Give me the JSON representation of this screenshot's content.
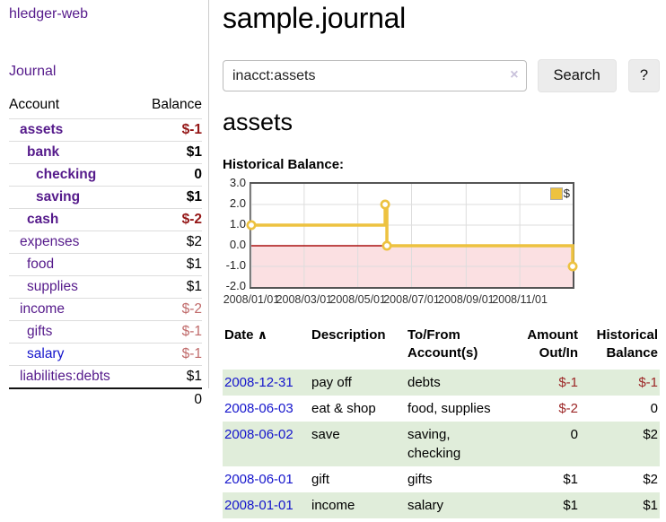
{
  "colors": {
    "link_purple": "#551a8b",
    "link_blue": "#1515cc",
    "negative_strong": "#941616",
    "negative_soft": "#c06a6a",
    "table_negative": "#9c2626",
    "row_stripe_green": "#e0edda",
    "chart_line_gold": "#edc240"
  },
  "sidebar": {
    "app_title": "hledger-web",
    "nav_journal": "Journal",
    "accounts": {
      "header_account": "Account",
      "header_balance": "Balance",
      "rows": [
        {
          "label": "assets",
          "balance": "$-1",
          "level": 1,
          "bold": true,
          "link": "purple",
          "balance_style": "neg"
        },
        {
          "label": "bank",
          "balance": "$1",
          "level": 2,
          "bold": true,
          "link": "purple",
          "balance_style": "normal"
        },
        {
          "label": "checking",
          "balance": "0",
          "level": 3,
          "bold": true,
          "link": "purple",
          "balance_style": "normal"
        },
        {
          "label": "saving",
          "balance": "$1",
          "level": 3,
          "bold": true,
          "link": "purple",
          "balance_style": "normal"
        },
        {
          "label": "cash",
          "balance": "$-2",
          "level": 2,
          "bold": true,
          "link": "purple",
          "balance_style": "neg"
        },
        {
          "label": "expenses",
          "balance": "$2",
          "level": 1,
          "bold": false,
          "link": "purple",
          "balance_style": "normal"
        },
        {
          "label": "food",
          "balance": "$1",
          "level": 2,
          "bold": false,
          "link": "purple",
          "balance_style": "normal"
        },
        {
          "label": "supplies",
          "balance": "$1",
          "level": 2,
          "bold": false,
          "link": "purple",
          "balance_style": "normal"
        },
        {
          "label": "income",
          "balance": "$-2",
          "level": 1,
          "bold": false,
          "link": "purple",
          "balance_style": "neg-soft"
        },
        {
          "label": "gifts",
          "balance": "$-1",
          "level": 2,
          "bold": false,
          "link": "purple",
          "balance_style": "neg-soft"
        },
        {
          "label": "salary",
          "balance": "$-1",
          "level": 2,
          "bold": false,
          "link": "blue",
          "balance_style": "neg-soft"
        },
        {
          "label": "liabilities:debts",
          "balance": "$1",
          "level": 1,
          "bold": false,
          "link": "purple",
          "balance_style": "normal"
        }
      ],
      "total": "0"
    }
  },
  "main": {
    "title": "sample.journal",
    "search": {
      "value": "inacct:assets",
      "clear_icon": "×",
      "search_button": "Search",
      "help_button": "?"
    },
    "account_heading": "assets",
    "chart_title": "Historical Balance:",
    "register": {
      "headers": {
        "date": "Date",
        "sort_icon": "∧",
        "description": "Description",
        "accounts_line1": "To/From",
        "accounts_line2": "Account(s)",
        "amount_line1": "Amount",
        "amount_line2": "Out/In",
        "balance_line1": "Historical",
        "balance_line2": "Balance"
      },
      "rows": [
        {
          "date": "2008-12-31",
          "description": "pay off",
          "accounts": "debts",
          "amount": "$-1",
          "amount_neg": true,
          "balance": "$-1",
          "balance_neg": true,
          "stripe": true
        },
        {
          "date": "2008-06-03",
          "description": "eat & shop",
          "accounts": "food, supplies",
          "amount": "$-2",
          "amount_neg": true,
          "balance": "0",
          "balance_neg": false,
          "stripe": false
        },
        {
          "date": "2008-06-02",
          "description": "save",
          "accounts": "saving, checking",
          "amount": "0",
          "amount_neg": false,
          "balance": "$2",
          "balance_neg": false,
          "stripe": true
        },
        {
          "date": "2008-06-01",
          "description": "gift",
          "accounts": "gifts",
          "amount": "$1",
          "amount_neg": false,
          "balance": "$2",
          "balance_neg": false,
          "stripe": false
        },
        {
          "date": "2008-01-01",
          "description": "income",
          "accounts": "salary",
          "amount": "$1",
          "amount_neg": false,
          "balance": "$1",
          "balance_neg": false,
          "stripe": true
        }
      ]
    }
  },
  "chart_data": {
    "type": "line",
    "step": true,
    "title": "Historical Balance:",
    "series": [
      {
        "name": "$",
        "color": "#edc240",
        "points": [
          [
            "2008-01-01",
            1
          ],
          [
            "2008-06-01",
            2
          ],
          [
            "2008-06-03",
            0
          ],
          [
            "2008-12-31",
            -1
          ]
        ]
      }
    ],
    "x_range": [
      "2008-01-01",
      "2008-12-31"
    ],
    "x_ticks": [
      {
        "date": "2008-01-01",
        "label": "2008/01/01"
      },
      {
        "date": "2008-03-01",
        "label": "2008/03/01"
      },
      {
        "date": "2008-05-01",
        "label": "2008/05/01"
      },
      {
        "date": "2008-07-01",
        "label": "2008/07/01"
      },
      {
        "date": "2008-09-01",
        "label": "2008/09/01"
      },
      {
        "date": "2008-11-01",
        "label": "2008/11/01"
      }
    ],
    "y_ticks": [
      {
        "value": 3,
        "label": "3.0"
      },
      {
        "value": 2,
        "label": "2.0"
      },
      {
        "value": 1,
        "label": "1.0"
      },
      {
        "value": 0,
        "label": "0.0"
      },
      {
        "value": -1,
        "label": "-1.0"
      },
      {
        "value": -2,
        "label": "-2.0"
      }
    ],
    "ylim": [
      -2,
      3
    ],
    "grid": true,
    "legend_position": "top-right",
    "negative_region_shaded": true,
    "chart_colors": {
      "negative_region": "#fbe0e2",
      "zero_line": "#aa1111",
      "gridline": "#ddd"
    }
  }
}
